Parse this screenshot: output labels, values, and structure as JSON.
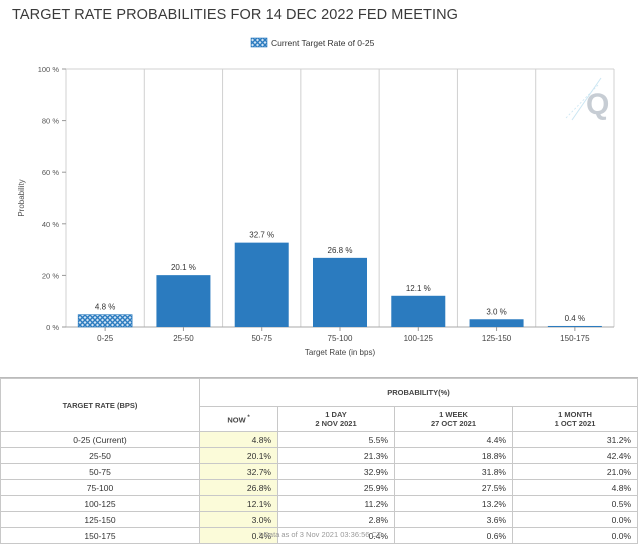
{
  "title": "TARGET RATE PROBABILITIES FOR 14 DEC 2022 FED MEETING",
  "legend": {
    "label": "Current Target Rate of 0-25"
  },
  "watermark": "Q",
  "colors": {
    "bar": "#2b7bbf",
    "current_bar": "#2b7bbf",
    "grid": "#d0d0d0",
    "now_cell": "#fbfbd9"
  },
  "chart_data": {
    "type": "bar",
    "title": "TARGET RATE PROBABILITIES FOR 14 DEC 2022 FED MEETING",
    "xlabel": "Target Rate (in bps)",
    "ylabel": "Probability",
    "ylim": [
      0,
      100
    ],
    "yticks": [
      "0 %",
      "20 %",
      "40 %",
      "60 %",
      "80 %",
      "100 %"
    ],
    "ytick_values": [
      0,
      20,
      40,
      60,
      80,
      100
    ],
    "categories": [
      "0-25",
      "25-50",
      "50-75",
      "75-100",
      "100-125",
      "125-150",
      "150-175"
    ],
    "values": [
      4.8,
      20.1,
      32.7,
      26.8,
      12.1,
      3.0,
      0.4
    ],
    "data_labels": [
      "4.8 %",
      "20.1 %",
      "32.7 %",
      "26.8 %",
      "12.1 %",
      "3.0 %",
      "0.4 %"
    ],
    "highlighted_category": "0-25",
    "legend": [
      "Current Target Rate of 0-25"
    ],
    "legend_position": "top-center",
    "grid": "vertical"
  },
  "table": {
    "rate_header": "TARGET RATE (BPS)",
    "prob_header": "PROBABILITY(%)",
    "columns": [
      {
        "line1": "NOW",
        "sup": "*",
        "line2": ""
      },
      {
        "line1": "1 DAY",
        "line2": "2 NOV 2021"
      },
      {
        "line1": "1 WEEK",
        "line2": "27 OCT 2021"
      },
      {
        "line1": "1 MONTH",
        "line2": "1 OCT 2021"
      }
    ],
    "rows": [
      {
        "rate": "0-25 (Current)",
        "values": [
          "4.8%",
          "5.5%",
          "4.4%",
          "31.2%"
        ]
      },
      {
        "rate": "25-50",
        "values": [
          "20.1%",
          "21.3%",
          "18.8%",
          "42.4%"
        ]
      },
      {
        "rate": "50-75",
        "values": [
          "32.7%",
          "32.9%",
          "31.8%",
          "21.0%"
        ]
      },
      {
        "rate": "75-100",
        "values": [
          "26.8%",
          "25.9%",
          "27.5%",
          "4.8%"
        ]
      },
      {
        "rate": "100-125",
        "values": [
          "12.1%",
          "11.2%",
          "13.2%",
          "0.5%"
        ]
      },
      {
        "rate": "125-150",
        "values": [
          "3.0%",
          "2.8%",
          "3.6%",
          "0.0%"
        ]
      },
      {
        "rate": "150-175",
        "values": [
          "0.4%",
          "0.4%",
          "0.6%",
          "0.0%"
        ]
      }
    ]
  },
  "footnote": "* Data as of 3 Nov 2021 03:36:56 CT"
}
